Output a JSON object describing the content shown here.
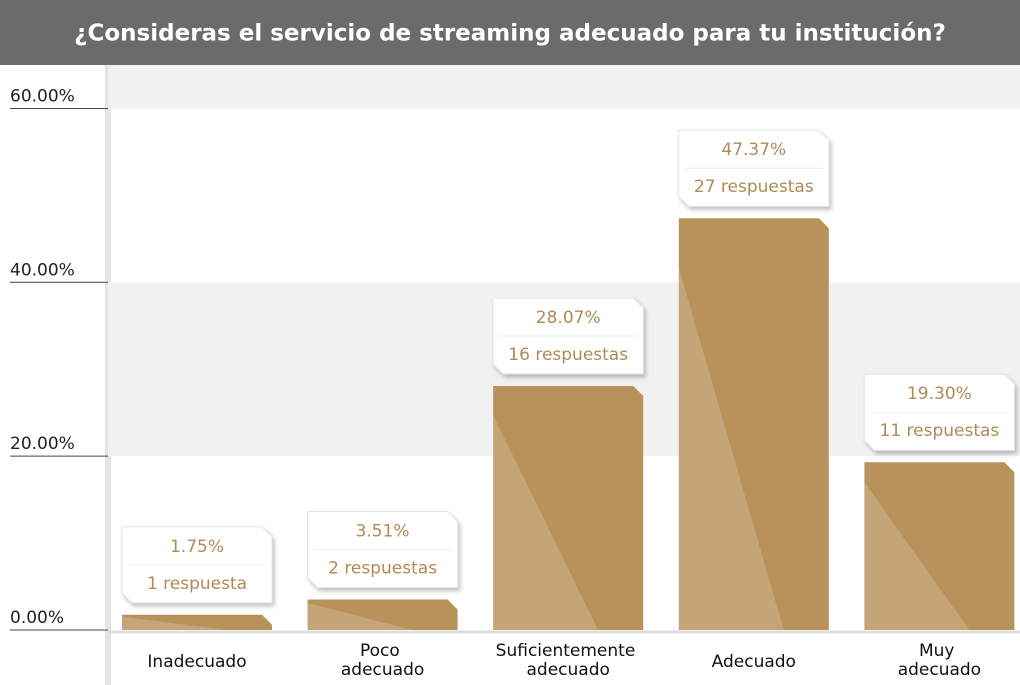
{
  "chart_data": {
    "type": "bar",
    "title": "¿Consideras el servicio de streaming adecuado para tu institución?",
    "categories": [
      "Inadecuado",
      "Poco adecuado",
      "Suficientemente adecuado",
      "Adecuado",
      "Muy adecuado"
    ],
    "values": [
      1.75,
      3.51,
      28.07,
      47.37,
      19.3
    ],
    "value_labels": [
      "1.75%",
      "3.51%",
      "28.07%",
      "47.37%",
      "19.30%"
    ],
    "counts": [
      1,
      2,
      16,
      27,
      11
    ],
    "count_labels": [
      "1 respuesta",
      "2 respuestas",
      "16 respuestas",
      "27 respuestas",
      "11 respuestas"
    ],
    "color": "#b8925a",
    "ylim": [
      0,
      65
    ],
    "yticks": [
      {
        "value": 0,
        "label": "0.00%"
      },
      {
        "value": 20,
        "label": "20.00%"
      },
      {
        "value": 40,
        "label": "40.00%"
      },
      {
        "value": 60,
        "label": "60.00%"
      }
    ],
    "grid": true
  }
}
